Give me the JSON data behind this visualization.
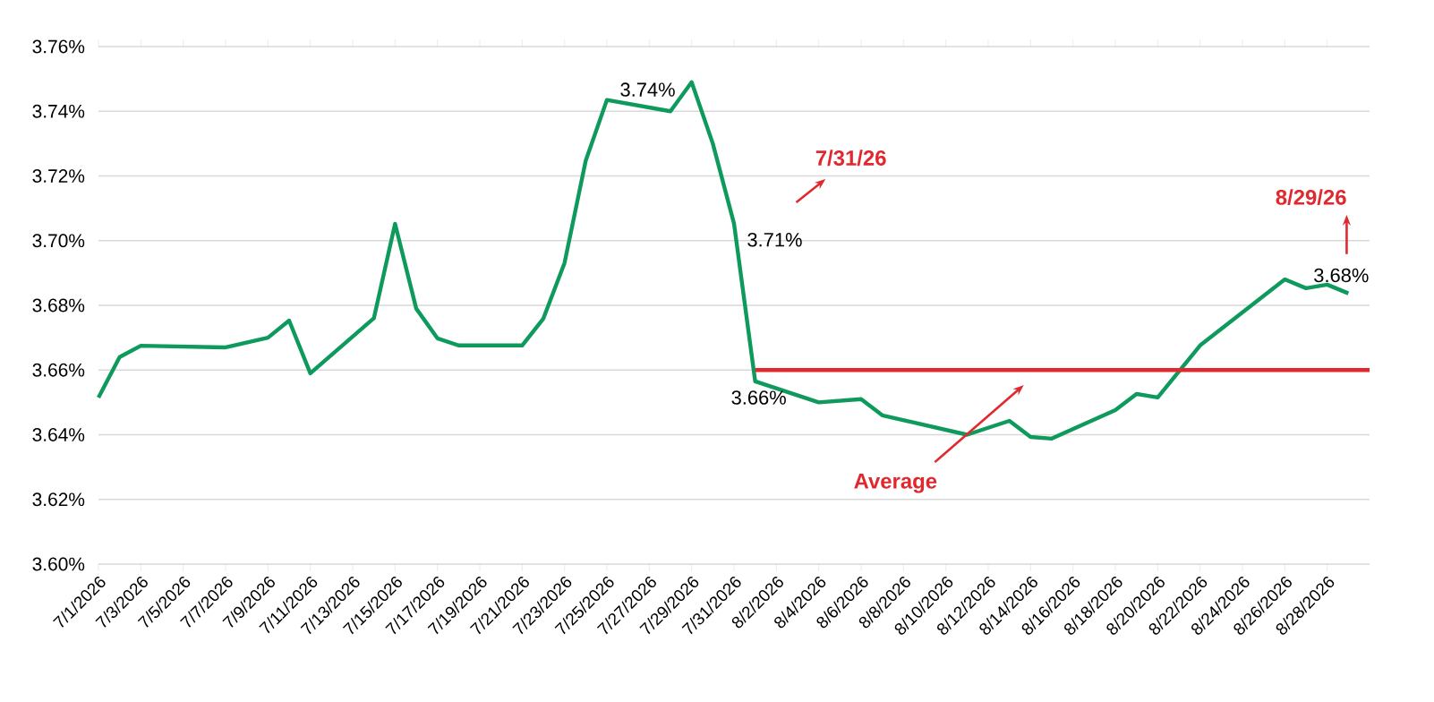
{
  "chart_data": {
    "type": "line",
    "xlim": [
      "2026-07-01",
      "2026-08-30"
    ],
    "ylim": [
      3.6,
      3.76
    ],
    "yticks": [
      {
        "value": 3.6,
        "label": "3.60%"
      },
      {
        "value": 3.62,
        "label": "3.62%"
      },
      {
        "value": 3.64,
        "label": "3.64%"
      },
      {
        "value": 3.66,
        "label": "3.66%"
      },
      {
        "value": 3.68,
        "label": "3.68%"
      },
      {
        "value": 3.7,
        "label": "3.70%"
      },
      {
        "value": 3.72,
        "label": "3.72%"
      },
      {
        "value": 3.74,
        "label": "3.74%"
      },
      {
        "value": 3.76,
        "label": "3.76%"
      }
    ],
    "xticks": [
      {
        "value": "2026-07-01",
        "label": "7/1/2026"
      },
      {
        "value": "2026-07-03",
        "label": "7/3/2026"
      },
      {
        "value": "2026-07-05",
        "label": "7/5/2026"
      },
      {
        "value": "2026-07-07",
        "label": "7/7/2026"
      },
      {
        "value": "2026-07-09",
        "label": "7/9/2026"
      },
      {
        "value": "2026-07-11",
        "label": "7/11/2026"
      },
      {
        "value": "2026-07-13",
        "label": "7/13/2026"
      },
      {
        "value": "2026-07-15",
        "label": "7/15/2026"
      },
      {
        "value": "2026-07-17",
        "label": "7/17/2026"
      },
      {
        "value": "2026-07-19",
        "label": "7/19/2026"
      },
      {
        "value": "2026-07-21",
        "label": "7/21/2026"
      },
      {
        "value": "2026-07-23",
        "label": "7/23/2026"
      },
      {
        "value": "2026-07-25",
        "label": "7/25/2026"
      },
      {
        "value": "2026-07-27",
        "label": "7/27/2026"
      },
      {
        "value": "2026-07-29",
        "label": "7/29/2026"
      },
      {
        "value": "2026-07-31",
        "label": "7/31/2026"
      },
      {
        "value": "2026-08-02",
        "label": "8/2/2026"
      },
      {
        "value": "2026-08-04",
        "label": "8/4/2026"
      },
      {
        "value": "2026-08-06",
        "label": "8/6/2026"
      },
      {
        "value": "2026-08-08",
        "label": "8/8/2026"
      },
      {
        "value": "2026-08-10",
        "label": "8/10/2026"
      },
      {
        "value": "2026-08-12",
        "label": "8/12/2026"
      },
      {
        "value": "2026-08-14",
        "label": "8/14/2026"
      },
      {
        "value": "2026-08-16",
        "label": "8/16/2026"
      },
      {
        "value": "2026-08-18",
        "label": "8/18/2026"
      },
      {
        "value": "2026-08-20",
        "label": "8/20/2026"
      },
      {
        "value": "2026-08-22",
        "label": "8/22/2026"
      },
      {
        "value": "2026-08-24",
        "label": "8/24/2026"
      },
      {
        "value": "2026-08-26",
        "label": "8/26/2026"
      },
      {
        "value": "2026-08-28",
        "label": "8/28/2026"
      }
    ],
    "grid": "y",
    "marker": "none",
    "line_style": "solid",
    "series": [
      {
        "color": "#0e9a5c",
        "x": [
          "2026-07-01",
          "2026-07-02",
          "2026-07-03",
          "2026-07-07",
          "2026-07-09",
          "2026-07-10",
          "2026-07-11",
          "2026-07-14",
          "2026-07-15",
          "2026-07-16",
          "2026-07-17",
          "2026-07-18",
          "2026-07-21",
          "2026-07-22",
          "2026-07-23",
          "2026-07-24",
          "2026-07-25",
          "2026-07-28",
          "2026-07-29",
          "2026-07-30",
          "2026-07-31",
          "2026-08-01",
          "2026-08-04",
          "2026-08-06",
          "2026-08-07",
          "2026-08-11",
          "2026-08-13",
          "2026-08-14",
          "2026-08-15",
          "2026-08-18",
          "2026-08-19",
          "2026-08-20",
          "2026-08-22",
          "2026-08-26",
          "2026-08-27",
          "2026-08-28",
          "2026-08-29"
        ],
        "values": [
          3.6515,
          3.664,
          3.6675,
          3.667,
          3.67,
          3.6753,
          3.659,
          3.676,
          3.7052,
          3.679,
          3.6698,
          3.6676,
          3.6676,
          3.6759,
          3.6931,
          3.7247,
          3.7435,
          3.74,
          3.749,
          3.73,
          3.7053,
          3.6565,
          3.65,
          3.651,
          3.646,
          3.64,
          3.6443,
          3.6393,
          3.6388,
          3.6476,
          3.6526,
          3.6515,
          3.6676,
          3.688,
          3.6853,
          3.6864,
          3.6837
        ],
        "value_labels": [
          null,
          null,
          null,
          null,
          null,
          null,
          null,
          null,
          null,
          null,
          null,
          null,
          null,
          null,
          null,
          null,
          null,
          "3.74%",
          null,
          null,
          "3.71%",
          "3.66%",
          null,
          null,
          null,
          null,
          null,
          null,
          null,
          null,
          null,
          null,
          null,
          null,
          null,
          null,
          "3.68%"
        ]
      },
      {
        "color": "#e0282e",
        "x": [
          "2026-08-01",
          "2026-08-30"
        ],
        "values": [
          3.66,
          3.66
        ]
      }
    ],
    "annotations": [
      "7/31/26",
      "8/29/26",
      "Average"
    ]
  }
}
